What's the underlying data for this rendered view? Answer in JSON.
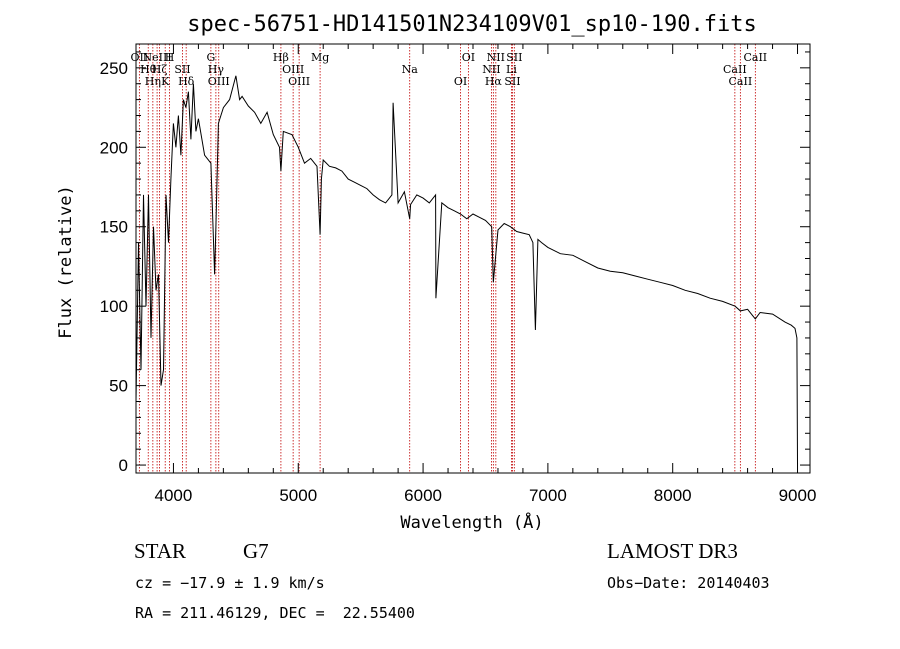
{
  "chart_data": {
    "type": "line",
    "title": "spec-56751-HD141501N234109V01_sp10-190.fits",
    "xlabel": "Wavelength (Å)",
    "ylabel": "Flux (relative)",
    "xlim": [
      3700,
      9100
    ],
    "ylim": [
      -5,
      265
    ],
    "x_ticks": [
      4000,
      5000,
      6000,
      7000,
      8000,
      9000
    ],
    "y_ticks": [
      0,
      50,
      100,
      150,
      200,
      250
    ],
    "series": [
      {
        "name": "flux",
        "x": [
          3700,
          3720,
          3740,
          3760,
          3780,
          3800,
          3820,
          3840,
          3860,
          3880,
          3900,
          3920,
          3940,
          3960,
          3980,
          4000,
          4020,
          4040,
          4060,
          4080,
          4100,
          4120,
          4140,
          4160,
          4180,
          4200,
          4250,
          4300,
          4330,
          4340,
          4360,
          4400,
          4450,
          4500,
          4530,
          4550,
          4600,
          4650,
          4700,
          4750,
          4800,
          4850,
          4861,
          4880,
          4950,
          5000,
          5050,
          5100,
          5150,
          5175,
          5185,
          5200,
          5250,
          5300,
          5350,
          5400,
          5450,
          5500,
          5550,
          5600,
          5650,
          5700,
          5750,
          5760,
          5800,
          5850,
          5893,
          5900,
          5950,
          6000,
          6050,
          6100,
          6103,
          6150,
          6200,
          6250,
          6300,
          6350,
          6400,
          6450,
          6500,
          6550,
          6563,
          6600,
          6650,
          6700,
          6750,
          6800,
          6850,
          6880,
          6900,
          6920,
          6950,
          7000,
          7100,
          7200,
          7300,
          7400,
          7500,
          7600,
          7700,
          7800,
          7900,
          8000,
          8100,
          8200,
          8300,
          8400,
          8500,
          8542,
          8600,
          8662,
          8700,
          8800,
          8900,
          8950,
          8980,
          8995,
          9000
        ],
        "y": [
          40,
          140,
          60,
          170,
          100,
          170,
          80,
          150,
          110,
          120,
          50,
          60,
          170,
          140,
          180,
          215,
          200,
          220,
          195,
          230,
          225,
          235,
          205,
          240,
          210,
          218,
          195,
          190,
          120,
          150,
          215,
          225,
          230,
          245,
          230,
          232,
          226,
          222,
          215,
          222,
          208,
          200,
          185,
          210,
          208,
          200,
          190,
          193,
          188,
          145,
          180,
          192,
          188,
          187,
          185,
          180,
          178,
          176,
          174,
          170,
          167,
          165,
          170,
          228,
          165,
          172,
          155,
          164,
          170,
          168,
          165,
          170,
          105,
          165,
          162,
          160,
          158,
          155,
          158,
          156,
          154,
          150,
          115,
          148,
          152,
          150,
          147,
          146,
          145,
          140,
          85,
          142,
          140,
          137,
          133,
          132,
          128,
          124,
          122,
          121,
          119,
          117,
          115,
          113,
          110,
          108,
          105,
          103,
          100,
          97,
          98,
          92,
          96,
          95,
          90,
          88,
          86,
          80,
          1
        ]
      }
    ],
    "lines": [
      {
        "x": 3727,
        "label": "OII"
      },
      {
        "x": 3798,
        "label": "Hθ"
      },
      {
        "x": 3835,
        "label": "Hη"
      },
      {
        "x": 3869,
        "label": "NeIII"
      },
      {
        "x": 3889,
        "label": "Hζ"
      },
      {
        "x": 3934,
        "label": "K"
      },
      {
        "x": 3969,
        "label": "H"
      },
      {
        "x": 4072,
        "label": "SII"
      },
      {
        "x": 4102,
        "label": "Hδ"
      },
      {
        "x": 4300,
        "label": "G"
      },
      {
        "x": 4340,
        "label": "Hγ"
      },
      {
        "x": 4363,
        "label": "OIII"
      },
      {
        "x": 4861,
        "label": "Hβ"
      },
      {
        "x": 4959,
        "label": "OIII"
      },
      {
        "x": 5007,
        "label": "OIII"
      },
      {
        "x": 5175,
        "label": "Mg"
      },
      {
        "x": 5893,
        "label": "Na"
      },
      {
        "x": 6300,
        "label": "OI"
      },
      {
        "x": 6363,
        "label": "OI"
      },
      {
        "x": 6548,
        "label": "NII"
      },
      {
        "x": 6563,
        "label": "Hα"
      },
      {
        "x": 6583,
        "label": "NII"
      },
      {
        "x": 6708,
        "label": "Li"
      },
      {
        "x": 6716,
        "label": "SII"
      },
      {
        "x": 6731,
        "label": "SII"
      },
      {
        "x": 8498,
        "label": "CaII"
      },
      {
        "x": 8542,
        "label": "CaII"
      },
      {
        "x": 8662,
        "label": "CaII"
      }
    ]
  },
  "info": {
    "object_class": "STAR",
    "subclass": "G7",
    "survey": "LAMOST DR3",
    "cz": "cz = −17.9 ± 1.9 km/s",
    "obs_date": "Obs−Date: 20140403",
    "coords": "RA = 211.46129, DEC =  22.55400"
  },
  "colors": {
    "spectrum": "#000000",
    "line_markers": "#c00000"
  }
}
